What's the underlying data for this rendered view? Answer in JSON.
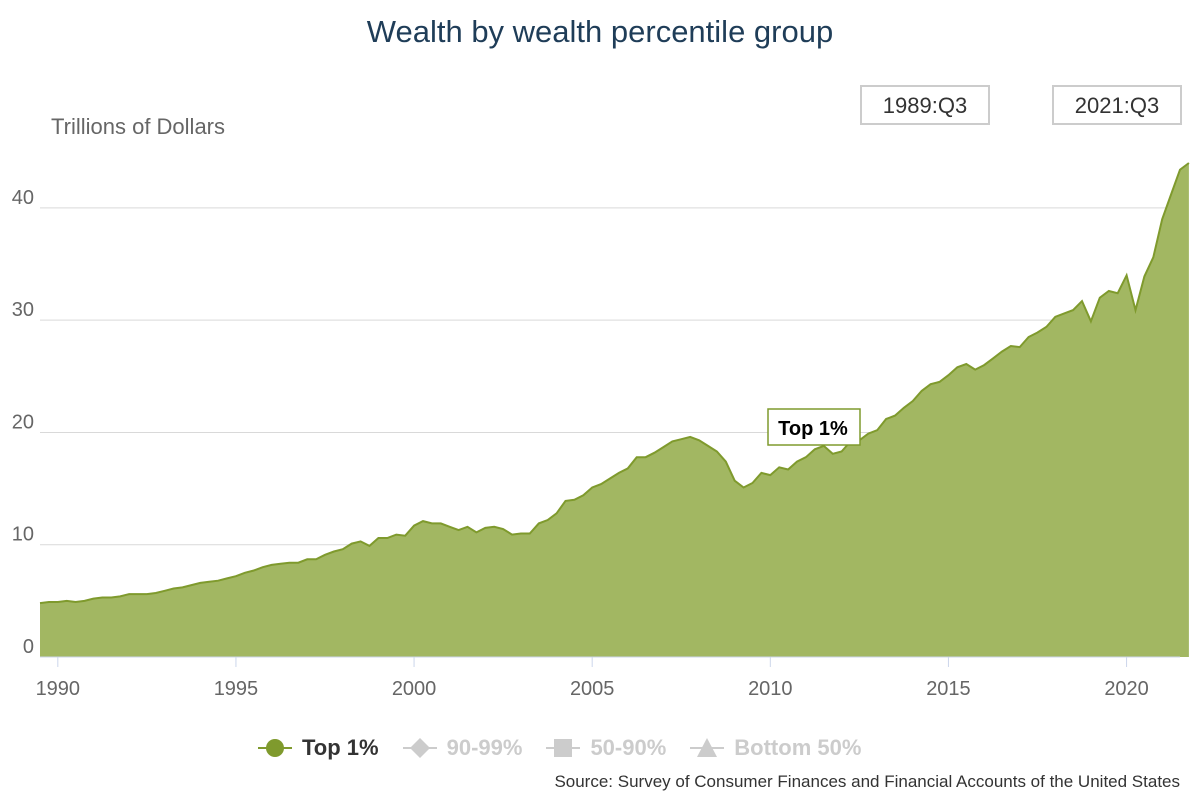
{
  "title": "Wealth by wealth percentile group",
  "y_unit_label": "Trillions of Dollars",
  "range": {
    "start": "1989:Q3",
    "end": "2021:Q3"
  },
  "tooltip": {
    "label": "Top 1%"
  },
  "legend": [
    {
      "label": "Top 1%",
      "marker": "circle",
      "active": true,
      "color": "#7f9a2d"
    },
    {
      "label": "90-99%",
      "marker": "diamond",
      "active": false,
      "color": "#cccccc"
    },
    {
      "label": "50-90%",
      "marker": "square",
      "active": false,
      "color": "#cccccc"
    },
    {
      "label": "Bottom 50%",
      "marker": "triangle",
      "active": false,
      "color": "#cccccc"
    }
  ],
  "source": "Source: Survey of Consumer Finances and Financial Accounts of the United States",
  "colors": {
    "area_fill": "#a2b762",
    "area_line": "#7f9a2d",
    "grid": "#d9d9d9",
    "axis": "#ccd6eb"
  },
  "chart_data": {
    "type": "area",
    "xlabel": "",
    "ylabel": "Trillions of Dollars",
    "xlim": [
      1989.5,
      2021.5
    ],
    "ylim": [
      0,
      44
    ],
    "x_ticks": [
      1990,
      1995,
      2000,
      2005,
      2010,
      2015,
      2020
    ],
    "y_ticks": [
      0,
      10,
      20,
      30,
      40
    ],
    "grid": true,
    "legend_position": "bottom",
    "series": [
      {
        "name": "Top 1%",
        "points": [
          [
            1989.5,
            4.8
          ],
          [
            1989.75,
            4.9
          ],
          [
            1990.0,
            4.9
          ],
          [
            1990.25,
            5.0
          ],
          [
            1990.5,
            4.9
          ],
          [
            1990.75,
            5.0
          ],
          [
            1991.0,
            5.2
          ],
          [
            1991.25,
            5.3
          ],
          [
            1991.5,
            5.3
          ],
          [
            1991.75,
            5.4
          ],
          [
            1992.0,
            5.6
          ],
          [
            1992.25,
            5.6
          ],
          [
            1992.5,
            5.6
          ],
          [
            1992.75,
            5.7
          ],
          [
            1993.0,
            5.9
          ],
          [
            1993.25,
            6.1
          ],
          [
            1993.5,
            6.2
          ],
          [
            1993.75,
            6.4
          ],
          [
            1994.0,
            6.6
          ],
          [
            1994.25,
            6.7
          ],
          [
            1994.5,
            6.8
          ],
          [
            1994.75,
            7.0
          ],
          [
            1995.0,
            7.2
          ],
          [
            1995.25,
            7.5
          ],
          [
            1995.5,
            7.7
          ],
          [
            1995.75,
            8.0
          ],
          [
            1996.0,
            8.2
          ],
          [
            1996.25,
            8.3
          ],
          [
            1996.5,
            8.4
          ],
          [
            1996.75,
            8.4
          ],
          [
            1997.0,
            8.7
          ],
          [
            1997.25,
            8.7
          ],
          [
            1997.5,
            9.1
          ],
          [
            1997.75,
            9.4
          ],
          [
            1998.0,
            9.6
          ],
          [
            1998.25,
            10.1
          ],
          [
            1998.5,
            10.3
          ],
          [
            1998.75,
            9.9
          ],
          [
            1999.0,
            10.6
          ],
          [
            1999.25,
            10.6
          ],
          [
            1999.5,
            10.9
          ],
          [
            1999.75,
            10.8
          ],
          [
            2000.0,
            11.7
          ],
          [
            2000.25,
            12.1
          ],
          [
            2000.5,
            11.9
          ],
          [
            2000.75,
            11.9
          ],
          [
            2001.0,
            11.6
          ],
          [
            2001.25,
            11.3
          ],
          [
            2001.5,
            11.6
          ],
          [
            2001.75,
            11.1
          ],
          [
            2002.0,
            11.5
          ],
          [
            2002.25,
            11.6
          ],
          [
            2002.5,
            11.4
          ],
          [
            2002.75,
            10.9
          ],
          [
            2003.0,
            11.0
          ],
          [
            2003.25,
            11.0
          ],
          [
            2003.5,
            11.9
          ],
          [
            2003.75,
            12.2
          ],
          [
            2004.0,
            12.8
          ],
          [
            2004.25,
            13.9
          ],
          [
            2004.5,
            14.0
          ],
          [
            2004.75,
            14.4
          ],
          [
            2005.0,
            15.1
          ],
          [
            2005.25,
            15.4
          ],
          [
            2005.5,
            15.9
          ],
          [
            2005.75,
            16.4
          ],
          [
            2006.0,
            16.8
          ],
          [
            2006.25,
            17.8
          ],
          [
            2006.5,
            17.8
          ],
          [
            2006.75,
            18.2
          ],
          [
            2007.0,
            18.7
          ],
          [
            2007.25,
            19.2
          ],
          [
            2007.5,
            19.4
          ],
          [
            2007.75,
            19.6
          ],
          [
            2008.0,
            19.3
          ],
          [
            2008.25,
            18.8
          ],
          [
            2008.5,
            18.3
          ],
          [
            2008.75,
            17.4
          ],
          [
            2009.0,
            15.7
          ],
          [
            2009.25,
            15.1
          ],
          [
            2009.5,
            15.5
          ],
          [
            2009.75,
            16.4
          ],
          [
            2010.0,
            16.2
          ],
          [
            2010.25,
            16.9
          ],
          [
            2010.5,
            16.7
          ],
          [
            2010.75,
            17.4
          ],
          [
            2011.0,
            17.8
          ],
          [
            2011.25,
            18.5
          ],
          [
            2011.5,
            18.8
          ],
          [
            2011.75,
            18.1
          ],
          [
            2012.0,
            18.3
          ],
          [
            2012.25,
            19.2
          ],
          [
            2012.5,
            19.3
          ],
          [
            2012.75,
            19.9
          ],
          [
            2013.0,
            20.2
          ],
          [
            2013.25,
            21.2
          ],
          [
            2013.5,
            21.5
          ],
          [
            2013.75,
            22.2
          ],
          [
            2014.0,
            22.8
          ],
          [
            2014.25,
            23.7
          ],
          [
            2014.5,
            24.3
          ],
          [
            2014.75,
            24.5
          ],
          [
            2015.0,
            25.1
          ],
          [
            2015.25,
            25.8
          ],
          [
            2015.5,
            26.1
          ],
          [
            2015.75,
            25.6
          ],
          [
            2016.0,
            26.0
          ],
          [
            2016.25,
            26.6
          ],
          [
            2016.5,
            27.2
          ],
          [
            2016.75,
            27.7
          ],
          [
            2017.0,
            27.6
          ],
          [
            2017.25,
            28.5
          ],
          [
            2017.5,
            28.9
          ],
          [
            2017.75,
            29.4
          ],
          [
            2018.0,
            30.3
          ],
          [
            2018.25,
            30.6
          ],
          [
            2018.5,
            30.9
          ],
          [
            2018.75,
            31.7
          ],
          [
            2019.0,
            29.9
          ],
          [
            2019.25,
            32.0
          ],
          [
            2019.5,
            32.6
          ],
          [
            2019.75,
            32.4
          ],
          [
            2020.0,
            34.0
          ],
          [
            2020.25,
            30.9
          ],
          [
            2020.5,
            33.9
          ],
          [
            2020.75,
            35.6
          ],
          [
            2021.0,
            39.0
          ],
          [
            2021.25,
            41.2
          ],
          [
            2021.5,
            43.4
          ],
          [
            2021.75,
            44.0
          ]
        ]
      }
    ]
  }
}
